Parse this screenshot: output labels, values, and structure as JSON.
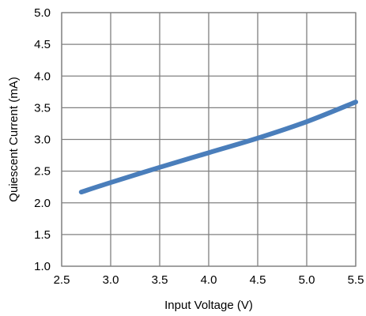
{
  "chart_data": {
    "type": "line",
    "title": "",
    "xlabel": "Input Voltage (V)",
    "ylabel": "Quiescent Current (mA)",
    "xlim": [
      2.5,
      5.5
    ],
    "ylim": [
      1.0,
      5.0
    ],
    "xticks": [
      "2.5",
      "3.0",
      "3.5",
      "4.0",
      "4.5",
      "5.0",
      "5.5"
    ],
    "yticks": [
      "1.0",
      "1.5",
      "2.0",
      "2.5",
      "3.0",
      "3.5",
      "4.0",
      "4.5",
      "5.0"
    ],
    "grid": true,
    "legend": "none",
    "series": [
      {
        "color": "#4a7ebb",
        "x": [
          2.7,
          3.0,
          3.5,
          4.0,
          4.5,
          5.0,
          5.5
        ],
        "y": [
          2.17,
          2.32,
          2.56,
          2.79,
          3.02,
          3.28,
          3.59
        ]
      }
    ]
  }
}
